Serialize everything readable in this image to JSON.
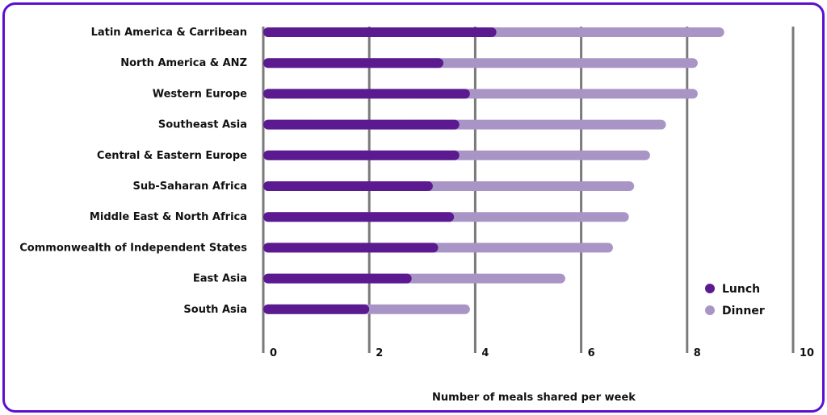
{
  "colors": {
    "frame": "#5a10d0",
    "lunch": "#5b1a8f",
    "dinner": "#a994c6",
    "gridline": "#7a7a7a"
  },
  "chart_data": {
    "type": "bar",
    "orientation": "horizontal",
    "stacked": true,
    "categories": [
      "Latin America & Carribean",
      "North America & ANZ",
      "Western Europe",
      "Southeast Asia",
      "Central & Eastern Europe",
      "Sub-Saharan Africa",
      "Middle East & North Africa",
      "Commonwealth of Independent States",
      "East Asia",
      "South Asia"
    ],
    "series": [
      {
        "name": "Lunch",
        "values": [
          4.4,
          3.4,
          3.9,
          3.7,
          3.7,
          3.2,
          3.6,
          3.3,
          2.8,
          2.0
        ]
      },
      {
        "name": "Dinner",
        "values": [
          4.3,
          4.8,
          4.3,
          3.9,
          3.6,
          3.8,
          3.3,
          3.3,
          2.9,
          1.9
        ]
      }
    ],
    "xlabel": "Number of meals shared per week",
    "ylabel": "",
    "xlim": [
      0,
      10
    ],
    "xticks": [
      "0",
      "2",
      "4",
      "6",
      "8",
      "10"
    ],
    "grid": true,
    "legend_position": "bottom-right"
  }
}
